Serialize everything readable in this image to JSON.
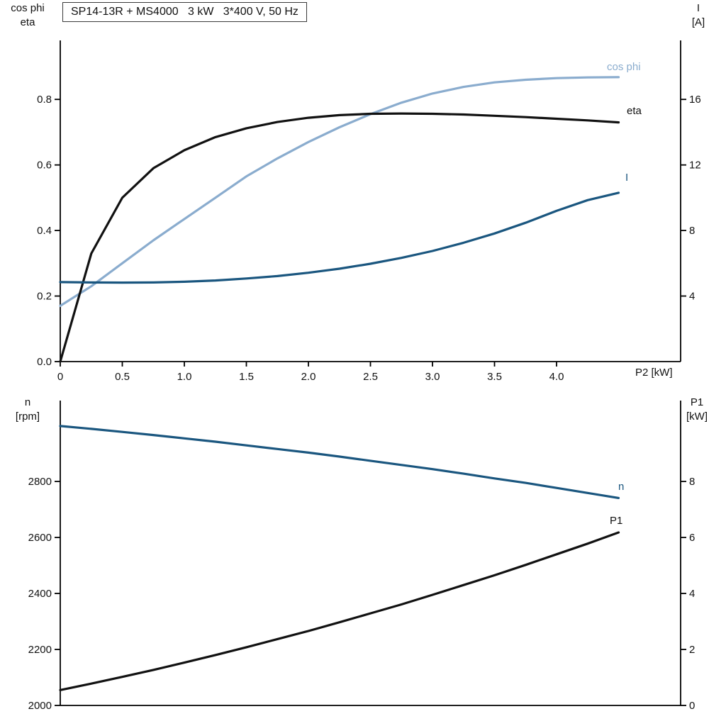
{
  "title": "SP14-13R + MS4000   3 kW   3*400 V, 50 Hz",
  "colors": {
    "black": "#111111",
    "dark_blue": "#1a567f",
    "light_blue": "#8aacce",
    "axis": "#000000"
  },
  "axis_corner_labels": {
    "top_left": [
      "cos phi",
      "eta"
    ],
    "top_right": [
      "I",
      "[A]"
    ],
    "bottom_left": [
      "n",
      "[rpm]"
    ],
    "bottom_right": [
      "P1",
      "[kW]"
    ]
  },
  "chart_data": [
    {
      "id": "top",
      "type": "line",
      "title": "SP14-13R + MS4000 3 kW 3*400 V, 50 Hz",
      "x_axis": {
        "label": "P2 [kW]",
        "range": [
          0,
          5.0
        ],
        "ticks": [
          {
            "v": 0,
            "t": "0"
          },
          {
            "v": 0.5,
            "t": "0.5"
          },
          {
            "v": 1.0,
            "t": "1.0"
          },
          {
            "v": 1.5,
            "t": "1.5"
          },
          {
            "v": 2.0,
            "t": "2.0"
          },
          {
            "v": 2.5,
            "t": "2.5"
          },
          {
            "v": 3.0,
            "t": "3.0"
          },
          {
            "v": 3.5,
            "t": "3.5"
          },
          {
            "v": 4.0,
            "t": "4.0"
          }
        ]
      },
      "left_axis": {
        "label": "cos phi / eta",
        "range": [
          0,
          0.98
        ],
        "ticks": [
          {
            "v": 0.0,
            "t": "0.0"
          },
          {
            "v": 0.2,
            "t": "0.2"
          },
          {
            "v": 0.4,
            "t": "0.4"
          },
          {
            "v": 0.6,
            "t": "0.6"
          },
          {
            "v": 0.8,
            "t": "0.8"
          }
        ]
      },
      "right_axis": {
        "label": "I [A]",
        "range": [
          0,
          19.6
        ],
        "ticks": [
          {
            "v": 4,
            "t": "4"
          },
          {
            "v": 8,
            "t": "8"
          },
          {
            "v": 12,
            "t": "12"
          },
          {
            "v": 16,
            "t": "16"
          }
        ]
      },
      "x": [
        0,
        0.25,
        0.5,
        0.75,
        1,
        1.25,
        1.5,
        1.75,
        2,
        2.25,
        2.5,
        2.75,
        3,
        3.25,
        3.5,
        3.75,
        4,
        4.25,
        4.5
      ],
      "series": [
        {
          "name": "cos phi",
          "axis": "left",
          "color_key": "light_blue",
          "values": [
            0.17,
            0.23,
            0.3,
            0.37,
            0.435,
            0.5,
            0.565,
            0.62,
            0.67,
            0.715,
            0.755,
            0.79,
            0.818,
            0.838,
            0.852,
            0.86,
            0.865,
            0.867,
            0.868
          ]
        },
        {
          "name": "eta",
          "axis": "left",
          "color_key": "black",
          "values": [
            0,
            0.33,
            0.5,
            0.59,
            0.645,
            0.685,
            0.712,
            0.731,
            0.744,
            0.752,
            0.756,
            0.757,
            0.756,
            0.754,
            0.75,
            0.746,
            0.741,
            0.736,
            0.73
          ]
        },
        {
          "name": "I",
          "axis": "right",
          "color_key": "dark_blue",
          "values": [
            4.85,
            4.83,
            4.82,
            4.83,
            4.87,
            4.95,
            5.07,
            5.22,
            5.42,
            5.67,
            5.97,
            6.33,
            6.75,
            7.25,
            7.82,
            8.47,
            9.2,
            9.85,
            10.3
          ]
        }
      ]
    },
    {
      "id": "bottom",
      "type": "line",
      "title": "",
      "x_axis": {
        "label": "",
        "range": [
          0,
          5.0
        ],
        "ticks": []
      },
      "left_axis": {
        "label": "n [rpm]",
        "range": [
          2000,
          3089
        ],
        "ticks": [
          {
            "v": 2000,
            "t": "2000"
          },
          {
            "v": 2200,
            "t": "2200"
          },
          {
            "v": 2400,
            "t": "2400"
          },
          {
            "v": 2600,
            "t": "2600"
          },
          {
            "v": 2800,
            "t": "2800"
          }
        ]
      },
      "right_axis": {
        "label": "P1 [kW]",
        "range": [
          0,
          10.89
        ],
        "ticks": [
          {
            "v": 0,
            "t": "0"
          },
          {
            "v": 2,
            "t": "2"
          },
          {
            "v": 4,
            "t": "4"
          },
          {
            "v": 6,
            "t": "6"
          },
          {
            "v": 8,
            "t": "8"
          }
        ]
      },
      "x": [
        0,
        0.25,
        0.5,
        0.75,
        1,
        1.25,
        1.5,
        1.75,
        2,
        2.25,
        2.5,
        2.75,
        3,
        3.25,
        3.5,
        3.75,
        4,
        4.25,
        4.5
      ],
      "series": [
        {
          "name": "n",
          "axis": "left",
          "color_key": "dark_blue",
          "values": [
            2998,
            2988,
            2977,
            2966,
            2954,
            2942,
            2929,
            2916,
            2903,
            2889,
            2874,
            2859,
            2844,
            2828,
            2811,
            2795,
            2777,
            2759,
            2741
          ]
        },
        {
          "name": "P1",
          "axis": "right",
          "color_key": "black",
          "values": [
            0.55,
            0.78,
            1.02,
            1.27,
            1.53,
            1.8,
            2.08,
            2.37,
            2.66,
            2.97,
            3.29,
            3.61,
            3.95,
            4.3,
            4.65,
            5.02,
            5.4,
            5.78,
            6.18
          ]
        }
      ]
    }
  ]
}
